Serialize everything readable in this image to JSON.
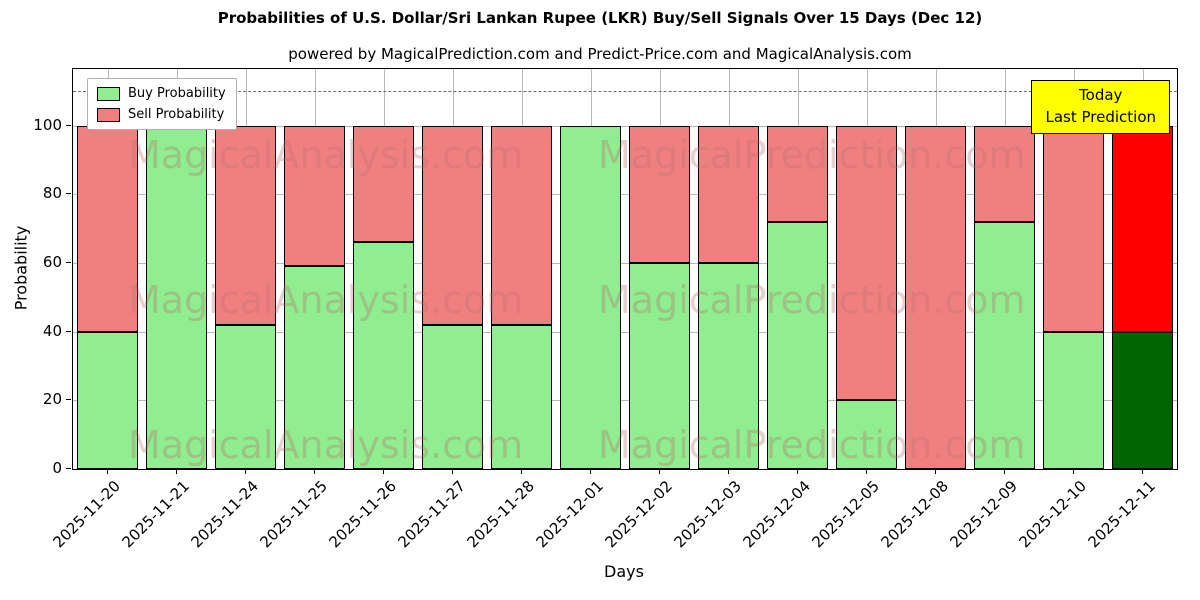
{
  "title": "Probabilities of U.S. Dollar/Sri Lankan Rupee (LKR) Buy/Sell Signals Over 15 Days (Dec 12)",
  "subtitle": "powered by MagicalPrediction.com and Predict-Price.com and MagicalAnalysis.com",
  "legend": {
    "items": [
      {
        "label": "Buy Probability",
        "color": "#90ee90"
      },
      {
        "label": "Sell Probability",
        "color": "#f08080"
      }
    ]
  },
  "annotation": {
    "line1": "Today",
    "line2": "Last Prediction",
    "bg": "#ffff00"
  },
  "axes": {
    "xlabel": "Days",
    "ylabel": "Probability",
    "yticks": [
      0,
      20,
      40,
      60,
      80,
      100
    ]
  },
  "watermarks": {
    "left": "MagicalAnalysis.com",
    "right": "MagicalPrediction.com"
  },
  "colors": {
    "buy": "#90ee90",
    "sell": "#f08080",
    "today_buy": "#006400",
    "today_sell": "#ff0000",
    "grid": "#b8b8b8",
    "dashed": "#6e6e6e",
    "edge": "#000000",
    "annotation_bg": "#ffff00"
  },
  "chart_data": {
    "type": "bar",
    "stacked": true,
    "title": "Probabilities of U.S. Dollar/Sri Lankan Rupee (LKR) Buy/Sell Signals Over 15 Days (Dec 12)",
    "xlabel": "Days",
    "ylabel": "Probability",
    "categories": [
      "2025-11-20",
      "2025-11-21",
      "2025-11-24",
      "2025-11-25",
      "2025-11-26",
      "2025-11-27",
      "2025-11-28",
      "2025-12-01",
      "2025-12-02",
      "2025-12-03",
      "2025-12-04",
      "2025-12-05",
      "2025-12-08",
      "2025-12-09",
      "2025-12-10",
      "2025-12-11"
    ],
    "series": [
      {
        "name": "Buy Probability",
        "values": [
          40,
          100,
          42,
          59,
          66,
          42,
          42,
          100,
          60,
          60,
          72,
          20,
          0,
          72,
          40,
          40
        ]
      },
      {
        "name": "Sell Probability",
        "values": [
          60,
          0,
          58,
          41,
          34,
          58,
          58,
          0,
          40,
          40,
          28,
          80,
          100,
          28,
          60,
          60
        ]
      }
    ],
    "ylim": [
      0,
      116.5
    ],
    "yticks": [
      0,
      20,
      40,
      60,
      80,
      100
    ],
    "dashed_line_y": 110,
    "today_index": 15,
    "grid": true,
    "legend_position": "upper left"
  }
}
